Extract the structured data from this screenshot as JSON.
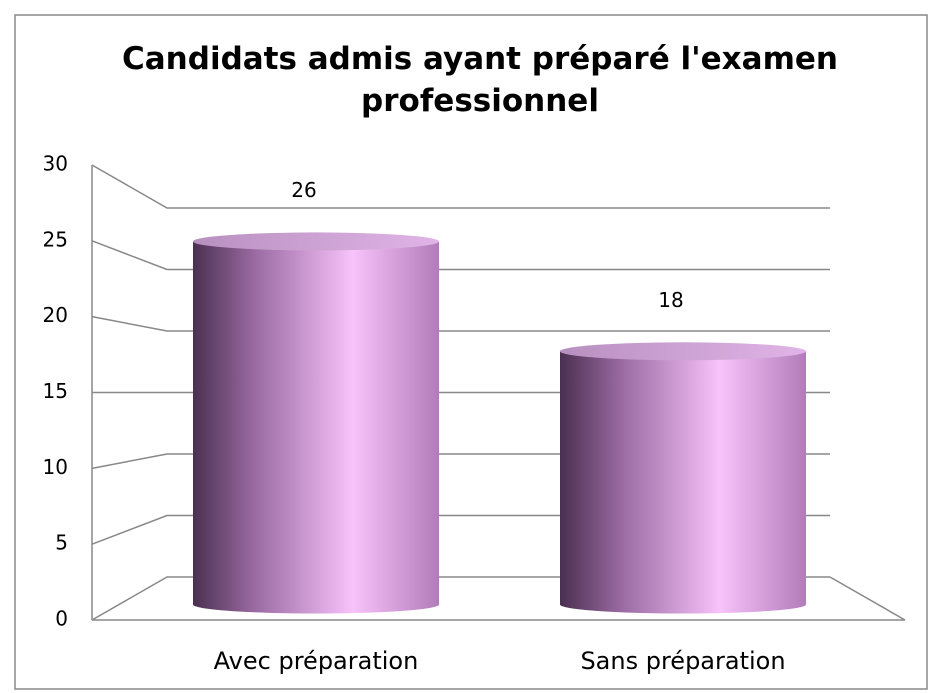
{
  "chart_data": {
    "type": "bar",
    "title": "Candidats admis ayant préparé l'examen professionnel",
    "categories": [
      "Avec préparation",
      "Sans préparation"
    ],
    "values": [
      26,
      18
    ],
    "color": "#c48fd0",
    "ylim": [
      0,
      30
    ],
    "yticks": [
      0,
      5,
      10,
      15,
      20,
      25,
      30
    ],
    "grid": true
  }
}
